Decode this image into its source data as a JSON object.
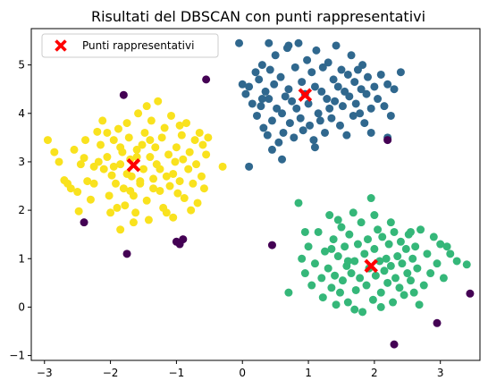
{
  "chart_data": {
    "type": "scatter",
    "title": "Risultati del DBSCAN con punti rappresentativi",
    "xlabel": "",
    "ylabel": "",
    "xlim": [
      -3.2,
      3.6
    ],
    "ylim": [
      -1.1,
      5.75
    ],
    "x_ticks": [
      -3,
      -2,
      -1,
      0,
      1,
      2,
      3
    ],
    "y_ticks": [
      -1,
      0,
      1,
      2,
      3,
      4,
      5
    ],
    "grid": false,
    "legend_position": "top-left",
    "series": [
      {
        "color": "#f9e21e",
        "points": [
          [
            -2.95,
            3.45
          ],
          [
            -2.85,
            3.2
          ],
          [
            -2.78,
            3.0
          ],
          [
            -2.7,
            2.62
          ],
          [
            -2.65,
            2.55
          ],
          [
            -2.55,
            3.25
          ],
          [
            -2.5,
            2.38
          ],
          [
            -2.48,
            1.98
          ],
          [
            -2.4,
            3.08
          ],
          [
            -2.38,
            3.45
          ],
          [
            -2.35,
            2.6
          ],
          [
            -2.3,
            2.22
          ],
          [
            -2.25,
            2.55
          ],
          [
            -2.2,
            3.62
          ],
          [
            -2.18,
            3.0
          ],
          [
            -2.15,
            3.35
          ],
          [
            -2.12,
            3.85
          ],
          [
            -2.1,
            2.85
          ],
          [
            -2.05,
            3.1
          ],
          [
            -2.02,
            2.3
          ],
          [
            -2.0,
            1.95
          ],
          [
            -1.98,
            2.72
          ],
          [
            -1.95,
            3.45
          ],
          [
            -1.92,
            2.55
          ],
          [
            -1.9,
            2.05
          ],
          [
            -1.88,
            3.68
          ],
          [
            -1.85,
            2.95
          ],
          [
            -1.82,
            3.2
          ],
          [
            -1.8,
            2.45
          ],
          [
            -1.78,
            2.1
          ],
          [
            -1.75,
            3.8
          ],
          [
            -1.72,
            3.5
          ],
          [
            -1.7,
            3.05
          ],
          [
            -1.68,
            2.7
          ],
          [
            -1.65,
            2.3
          ],
          [
            -1.62,
            1.95
          ],
          [
            -1.6,
            3.25
          ],
          [
            -1.58,
            4.0
          ],
          [
            -1.55,
            2.55
          ],
          [
            -1.52,
            3.35
          ],
          [
            -1.5,
            2.85
          ],
          [
            -1.48,
            3.6
          ],
          [
            -1.45,
            2.2
          ],
          [
            -1.42,
            1.8
          ],
          [
            -1.4,
            3.1
          ],
          [
            -1.38,
            3.85
          ],
          [
            -1.35,
            2.65
          ],
          [
            -1.32,
            3.3
          ],
          [
            -1.3,
            2.95
          ],
          [
            -1.28,
            4.25
          ],
          [
            -1.25,
            2.4
          ],
          [
            -1.22,
            3.5
          ],
          [
            -1.2,
            2.05
          ],
          [
            -1.18,
            3.7
          ],
          [
            -1.15,
            2.7
          ],
          [
            -1.12,
            3.15
          ],
          [
            -1.1,
            2.5
          ],
          [
            -1.08,
            3.95
          ],
          [
            -1.05,
            1.85
          ],
          [
            -1.02,
            3.0
          ],
          [
            -1.0,
            3.3
          ],
          [
            -0.98,
            2.35
          ],
          [
            -0.95,
            2.6
          ],
          [
            -0.92,
            3.55
          ],
          [
            -0.9,
            3.05
          ],
          [
            -0.88,
            2.25
          ],
          [
            -0.85,
            3.8
          ],
          [
            -0.82,
            2.85
          ],
          [
            -0.8,
            3.2
          ],
          [
            -0.78,
            2.0
          ],
          [
            -0.75,
            2.55
          ],
          [
            -0.72,
            3.45
          ],
          [
            -0.7,
            2.95
          ],
          [
            -0.68,
            2.15
          ],
          [
            -0.65,
            3.6
          ],
          [
            -0.62,
            2.7
          ],
          [
            -0.6,
            3.35
          ],
          [
            -0.58,
            2.45
          ],
          [
            -0.55,
            3.15
          ],
          [
            -0.52,
            3.5
          ],
          [
            -1.95,
            2.9
          ],
          [
            -1.75,
            2.75
          ],
          [
            -1.55,
            2.6
          ],
          [
            -1.35,
            2.45
          ],
          [
            -1.85,
            1.6
          ],
          [
            -1.65,
            1.75
          ],
          [
            -2.25,
            2.9
          ],
          [
            -1.45,
            4.15
          ],
          [
            -1.15,
            1.95
          ],
          [
            -0.3,
            2.9
          ],
          [
            -0.95,
            3.75
          ],
          [
            -1.6,
            3.1
          ],
          [
            -1.4,
            3.45
          ],
          [
            -2.05,
            3.6
          ],
          [
            -1.7,
            2.4
          ],
          [
            -2.6,
            2.45
          ],
          [
            -1.25,
            2.85
          ],
          [
            -1.05,
            2.75
          ],
          [
            -2.45,
            2.95
          ],
          [
            -1.85,
            3.3
          ]
        ]
      },
      {
        "color": "#30688e",
        "points": [
          [
            0.0,
            4.6
          ],
          [
            0.05,
            4.4
          ],
          [
            0.1,
            4.55
          ],
          [
            0.15,
            4.2
          ],
          [
            0.2,
            4.85
          ],
          [
            0.22,
            3.95
          ],
          [
            0.25,
            4.7
          ],
          [
            0.28,
            4.15
          ],
          [
            0.3,
            5.0
          ],
          [
            0.32,
            3.7
          ],
          [
            0.35,
            4.45
          ],
          [
            0.38,
            3.55
          ],
          [
            0.4,
            4.3
          ],
          [
            0.42,
            4.9
          ],
          [
            0.45,
            3.85
          ],
          [
            0.48,
            4.6
          ],
          [
            0.5,
            5.2
          ],
          [
            0.52,
            4.1
          ],
          [
            0.55,
            3.4
          ],
          [
            0.58,
            4.75
          ],
          [
            0.6,
            4.0
          ],
          [
            0.62,
            3.6
          ],
          [
            0.65,
            4.35
          ],
          [
            0.68,
            5.35
          ],
          [
            0.7,
            4.5
          ],
          [
            0.72,
            3.8
          ],
          [
            0.75,
            4.25
          ],
          [
            0.78,
            3.5
          ],
          [
            0.8,
            4.95
          ],
          [
            0.82,
            4.1
          ],
          [
            0.85,
            5.45
          ],
          [
            0.88,
            3.9
          ],
          [
            0.9,
            4.65
          ],
          [
            0.92,
            3.65
          ],
          [
            0.95,
            4.4
          ],
          [
            0.98,
            5.1
          ],
          [
            1.0,
            4.2
          ],
          [
            1.02,
            3.75
          ],
          [
            1.05,
            4.85
          ],
          [
            1.08,
            3.45
          ],
          [
            1.1,
            4.55
          ],
          [
            1.12,
            5.3
          ],
          [
            1.15,
            4.0
          ],
          [
            1.18,
            3.85
          ],
          [
            1.2,
            4.45
          ],
          [
            1.22,
            4.95
          ],
          [
            1.25,
            3.6
          ],
          [
            1.28,
            4.3
          ],
          [
            1.3,
            5.05
          ],
          [
            1.32,
            4.1
          ],
          [
            1.35,
            3.9
          ],
          [
            1.38,
            4.7
          ],
          [
            1.4,
            4.25
          ],
          [
            1.42,
            5.4
          ],
          [
            1.45,
            4.55
          ],
          [
            1.48,
            3.75
          ],
          [
            1.5,
            4.9
          ],
          [
            1.52,
            4.15
          ],
          [
            1.55,
            4.45
          ],
          [
            1.58,
            3.55
          ],
          [
            1.6,
            4.8
          ],
          [
            1.62,
            4.35
          ],
          [
            1.65,
            5.2
          ],
          [
            1.68,
            3.95
          ],
          [
            1.7,
            4.65
          ],
          [
            1.72,
            4.2
          ],
          [
            1.75,
            4.9
          ],
          [
            1.78,
            4.0
          ],
          [
            1.8,
            4.5
          ],
          [
            1.82,
            5.0
          ],
          [
            1.85,
            3.8
          ],
          [
            1.88,
            4.4
          ],
          [
            1.9,
            4.75
          ],
          [
            1.95,
            3.6
          ],
          [
            2.0,
            4.55
          ],
          [
            2.05,
            4.3
          ],
          [
            2.1,
            4.8
          ],
          [
            2.15,
            4.15
          ],
          [
            2.2,
            4.6
          ],
          [
            2.25,
            3.95
          ],
          [
            2.3,
            4.5
          ],
          [
            2.4,
            4.85
          ],
          [
            0.1,
            2.9
          ],
          [
            0.45,
            3.25
          ],
          [
            0.6,
            3.05
          ],
          [
            2.2,
            3.5
          ],
          [
            1.1,
            3.3
          ],
          [
            0.3,
            4.3
          ],
          [
            0.7,
            5.4
          ],
          [
            -0.05,
            5.45
          ],
          [
            0.4,
            5.45
          ],
          [
            1.95,
            4.1
          ]
        ]
      },
      {
        "color": "#35b779",
        "points": [
          [
            0.7,
            0.3
          ],
          [
            0.85,
            2.15
          ],
          [
            0.9,
            1.0
          ],
          [
            0.95,
            0.7
          ],
          [
            1.0,
            1.25
          ],
          [
            1.05,
            0.45
          ],
          [
            1.1,
            0.9
          ],
          [
            1.15,
            1.55
          ],
          [
            1.2,
            0.6
          ],
          [
            1.22,
            0.2
          ],
          [
            1.25,
            1.15
          ],
          [
            1.3,
            0.8
          ],
          [
            1.32,
            1.9
          ],
          [
            1.35,
            0.4
          ],
          [
            1.38,
            1.4
          ],
          [
            1.4,
            0.65
          ],
          [
            1.42,
            0.05
          ],
          [
            1.45,
            1.05
          ],
          [
            1.48,
            0.3
          ],
          [
            1.5,
            1.65
          ],
          [
            1.52,
            0.55
          ],
          [
            1.55,
            1.25
          ],
          [
            1.58,
            0.85
          ],
          [
            1.6,
            0.1
          ],
          [
            1.62,
            1.5
          ],
          [
            1.65,
            0.7
          ],
          [
            1.68,
            1.95
          ],
          [
            1.7,
            0.95
          ],
          [
            1.72,
            0.35
          ],
          [
            1.75,
            1.3
          ],
          [
            1.78,
            0.6
          ],
          [
            1.8,
            1.75
          ],
          [
            1.82,
            -0.1
          ],
          [
            1.85,
            1.1
          ],
          [
            1.88,
            0.45
          ],
          [
            1.9,
            1.4
          ],
          [
            1.92,
            0.8
          ],
          [
            1.95,
            2.25
          ],
          [
            1.98,
            0.15
          ],
          [
            2.0,
            1.2
          ],
          [
            2.02,
            0.65
          ],
          [
            2.05,
            1.6
          ],
          [
            2.08,
            0.95
          ],
          [
            2.1,
            0.3
          ],
          [
            2.12,
            1.45
          ],
          [
            2.15,
            0.75
          ],
          [
            2.18,
            1.0
          ],
          [
            2.2,
            0.5
          ],
          [
            2.22,
            1.3
          ],
          [
            2.25,
            0.85
          ],
          [
            2.28,
            0.1
          ],
          [
            2.3,
            1.55
          ],
          [
            2.32,
            0.6
          ],
          [
            2.35,
            1.05
          ],
          [
            2.38,
            0.4
          ],
          [
            2.4,
            1.35
          ],
          [
            2.42,
            0.9
          ],
          [
            2.45,
            0.25
          ],
          [
            2.48,
            1.2
          ],
          [
            2.5,
            0.7
          ],
          [
            2.52,
            1.5
          ],
          [
            2.55,
            0.55
          ],
          [
            2.58,
            1.0
          ],
          [
            2.6,
            0.3
          ],
          [
            2.62,
            1.25
          ],
          [
            2.65,
            0.8
          ],
          [
            2.7,
            1.6
          ],
          [
            2.75,
            0.45
          ],
          [
            2.8,
            1.1
          ],
          [
            2.85,
            0.7
          ],
          [
            2.9,
            1.45
          ],
          [
            2.95,
            0.9
          ],
          [
            3.0,
            1.3
          ],
          [
            3.05,
            0.6
          ],
          [
            3.15,
            1.1
          ],
          [
            3.25,
            0.95
          ],
          [
            3.4,
            0.88
          ],
          [
            3.1,
            1.25
          ],
          [
            2.68,
            0.05
          ],
          [
            1.7,
            -0.05
          ],
          [
            1.45,
            1.8
          ],
          [
            2.25,
            1.75
          ],
          [
            2.0,
            1.9
          ],
          [
            1.35,
            1.2
          ],
          [
            0.95,
            1.55
          ],
          [
            2.55,
            1.55
          ],
          [
            1.6,
            0.95
          ],
          [
            2.1,
            0.0
          ]
        ]
      },
      {
        "color": "#440154",
        "points": [
          [
            -1.8,
            4.38
          ],
          [
            -0.55,
            4.7
          ],
          [
            -2.4,
            1.75
          ],
          [
            -1.75,
            1.1
          ],
          [
            -1.0,
            1.35
          ],
          [
            -0.95,
            1.3
          ],
          [
            -0.9,
            1.4
          ],
          [
            0.45,
            1.28
          ],
          [
            2.2,
            3.45
          ],
          [
            3.45,
            0.28
          ],
          [
            2.95,
            -0.33
          ],
          [
            2.3,
            -0.77
          ]
        ]
      }
    ],
    "representative_points": {
      "name": "Punti rappresentativi",
      "color": "#ff0000",
      "marker": "X",
      "points": [
        [
          -1.65,
          2.93
        ],
        [
          0.95,
          4.38
        ],
        [
          1.95,
          0.85
        ]
      ]
    }
  }
}
